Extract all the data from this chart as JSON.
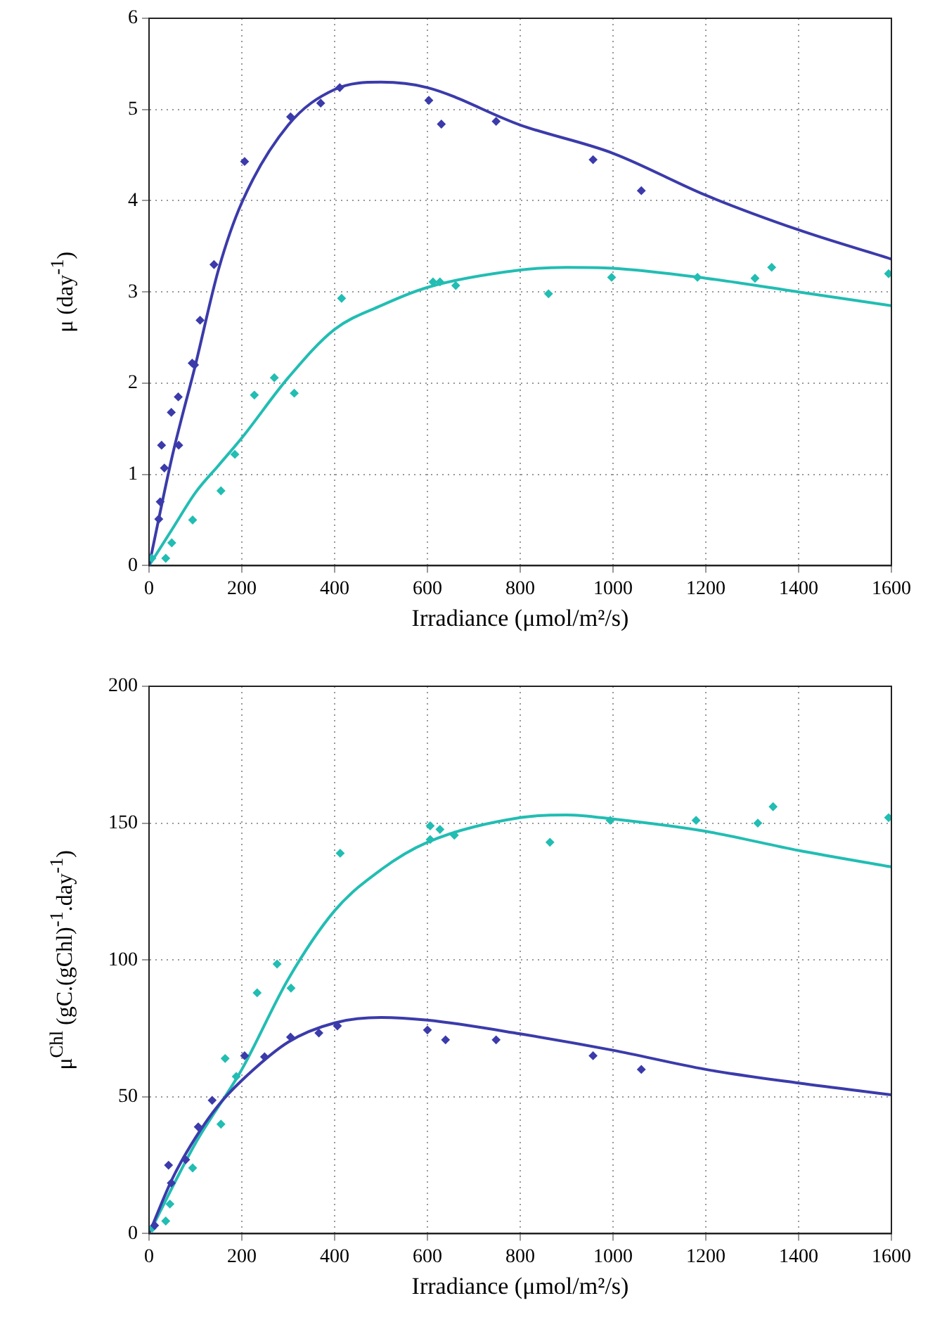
{
  "chart_data": [
    {
      "type": "scatter",
      "xlabel": "Irradiance (μmol/m²/s)",
      "ylabel": "μ (day$^{-1}$)",
      "xlim": [
        0,
        1600
      ],
      "xticks": [
        0,
        200,
        400,
        600,
        800,
        1000,
        1200,
        1400,
        1600
      ],
      "ylim": [
        0,
        6
      ],
      "yticks": [
        0,
        1,
        2,
        3,
        4,
        5,
        6
      ],
      "grid": true,
      "legend": false,
      "marker": "diamond",
      "series": [
        {
          "color": "#3b3bab",
          "x": [
            21,
            24,
            27,
            33,
            48,
            63,
            64,
            93,
            98,
            110,
            140,
            206,
            305,
            370,
            411,
            603,
            630,
            748,
            957,
            1061
          ],
          "values": [
            0.51,
            0.7,
            1.32,
            1.07,
            1.68,
            1.85,
            1.32,
            2.22,
            2.2,
            2.69,
            3.3,
            4.43,
            4.92,
            5.07,
            5.24,
            5.1,
            4.84,
            4.87,
            4.45,
            4.11
          ]
        },
        {
          "color": "#22bdb3",
          "x": [
            6,
            36,
            49,
            94,
            155,
            185,
            227,
            270,
            313,
            415,
            612,
            627,
            661,
            861,
            997,
            1182,
            1306,
            1342,
            1594
          ],
          "values": [
            0.08,
            0.08,
            0.25,
            0.5,
            0.82,
            1.22,
            1.87,
            2.06,
            1.89,
            2.93,
            3.11,
            3.11,
            3.07,
            2.98,
            3.16,
            3.16,
            3.15,
            3.27,
            3.2
          ]
        },
        {
          "type": "line",
          "marker": "none",
          "color": "#3b3bab",
          "x": [
            0,
            50,
            100,
            150,
            200,
            300,
            400,
            500,
            600,
            800,
            1000,
            1200,
            1400,
            1600
          ],
          "values": [
            0,
            1.2,
            2.2,
            3.25,
            3.98,
            4.83,
            5.22,
            5.3,
            5.24,
            4.83,
            4.52,
            4.06,
            3.68,
            3.36
          ]
        },
        {
          "type": "line",
          "marker": "none",
          "color": "#22bdb3",
          "x": [
            0,
            50,
            100,
            150,
            200,
            300,
            400,
            500,
            600,
            800,
            900,
            1000,
            1200,
            1400,
            1600
          ],
          "values": [
            0,
            0.4,
            0.8,
            1.1,
            1.4,
            2.06,
            2.59,
            2.85,
            3.05,
            3.24,
            3.27,
            3.26,
            3.15,
            3.0,
            2.85
          ]
        }
      ]
    },
    {
      "type": "scatter",
      "xlabel": "Irradiance (μmol/m²/s)",
      "ylabel": "μ$^{Chl}$ (gC.(gChl)$^{-1}$.day$^{-1}$)",
      "xlim": [
        0,
        1600
      ],
      "xticks": [
        0,
        200,
        400,
        600,
        800,
        1000,
        1200,
        1400,
        1600
      ],
      "ylim": [
        0,
        200
      ],
      "yticks": [
        0,
        50,
        100,
        150,
        200
      ],
      "grid": true,
      "legend": false,
      "marker": "diamond",
      "series": [
        {
          "color": "#3b3bab",
          "x": [
            12,
            42,
            48,
            79,
            106,
            136,
            206,
            249,
            305,
            366,
            406,
            600,
            639,
            748,
            957,
            1061
          ],
          "values": [
            3,
            25,
            18.5,
            27,
            39,
            48.7,
            65,
            64.6,
            71.8,
            73.3,
            75.9,
            74.4,
            70.8,
            70.8,
            65,
            60
          ]
        },
        {
          "color": "#22bdb3",
          "x": [
            7,
            36,
            45,
            94,
            155,
            164,
            188,
            233,
            276,
            306,
            412,
            606,
            627,
            606,
            658,
            864,
            994,
            1179,
            1312,
            1345,
            1594
          ],
          "values": [
            2,
            4.6,
            10.8,
            24,
            40,
            64,
            57.4,
            88,
            98.5,
            89.7,
            139,
            149,
            147.7,
            144,
            145.6,
            143,
            151,
            151,
            150,
            156,
            152
          ]
        },
        {
          "type": "line",
          "marker": "none",
          "color": "#3b3bab",
          "x": [
            0,
            50,
            100,
            150,
            200,
            300,
            400,
            500,
            600,
            800,
            1000,
            1200,
            1400,
            1600
          ],
          "values": [
            0,
            20,
            35,
            47,
            56,
            70,
            77,
            79,
            78,
            73,
            67,
            60,
            55,
            50.7
          ]
        },
        {
          "type": "line",
          "marker": "none",
          "color": "#22bdb3",
          "x": [
            0,
            100,
            200,
            300,
            400,
            500,
            600,
            800,
            900,
            1000,
            1200,
            1400,
            1600
          ],
          "values": [
            0,
            33,
            60,
            93,
            118,
            133,
            143,
            152,
            153,
            151.5,
            147,
            140,
            134
          ]
        }
      ]
    }
  ]
}
